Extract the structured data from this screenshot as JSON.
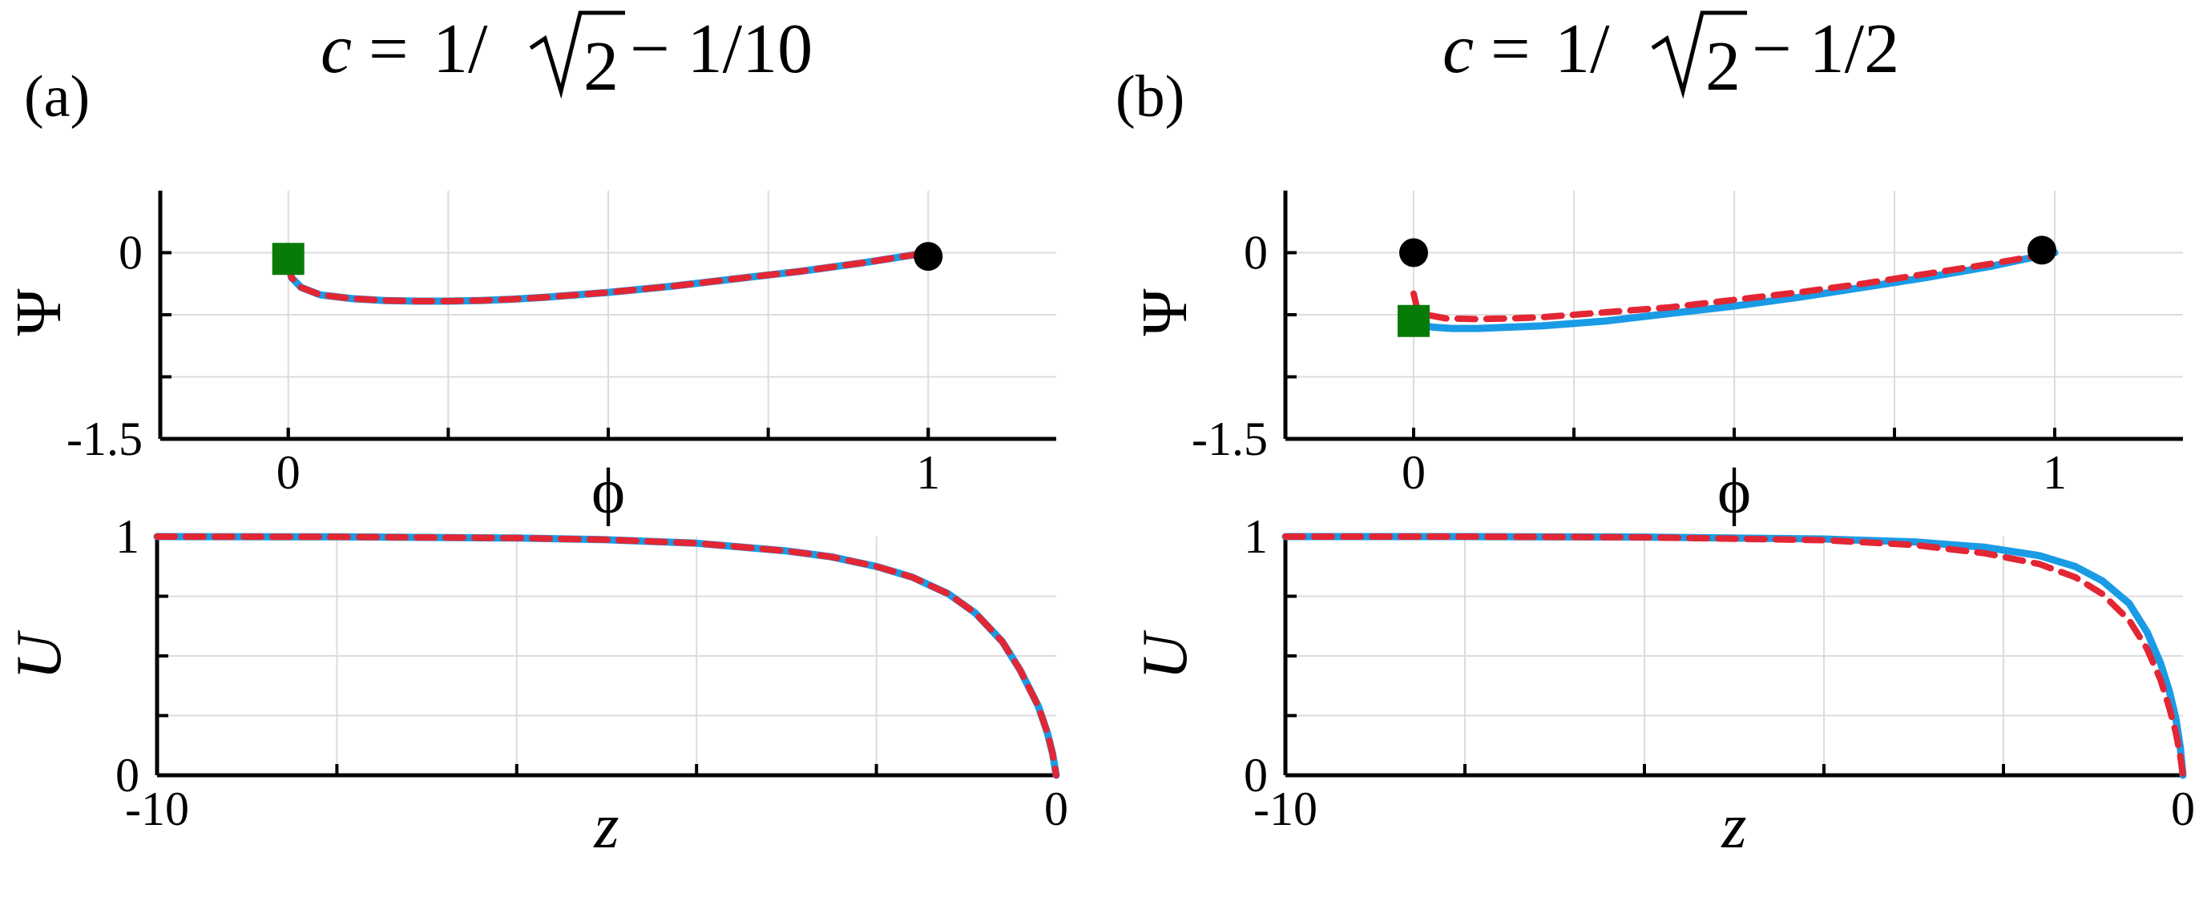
{
  "chart_data": [
    {
      "panel": "(a)",
      "title": {
        "lhs": "c",
        "eq": "=",
        "num1": "1/",
        "rad": "2",
        "rest": "− 1/10"
      },
      "subplots": [
        {
          "type": "line",
          "xlabel": "ϕ",
          "ylabel": "Ψ",
          "xlim": [
            -0.2,
            1.2
          ],
          "ylim": [
            -1.5,
            0.5
          ],
          "xticks": [
            {
              "v": 0,
              "label": "0"
            },
            {
              "v": 1,
              "label": "1"
            }
          ],
          "yticks": [
            {
              "v": 0,
              "label": "0"
            },
            {
              "v": -1.5,
              "label": "-1.5"
            }
          ],
          "grid_x": [
            0,
            0.25,
            0.5,
            0.75,
            1.0
          ],
          "grid_y": [
            0,
            -0.5,
            -1.0
          ],
          "series": [
            {
              "color": "#1a9be6",
              "style": "solid",
              "x": [
                0,
                0.005,
                0.02,
                0.05,
                0.1,
                0.15,
                0.2,
                0.25,
                0.3,
                0.35,
                0.4,
                0.5,
                0.6,
                0.7,
                0.8,
                0.9,
                1.0
              ],
              "y": [
                -0.08,
                -0.2,
                -0.28,
                -0.34,
                -0.37,
                -0.385,
                -0.39,
                -0.39,
                -0.385,
                -0.375,
                -0.36,
                -0.32,
                -0.27,
                -0.21,
                -0.15,
                -0.08,
                0
              ]
            },
            {
              "color": "#e32634",
              "style": "dashed",
              "x": [
                0,
                0.005,
                0.02,
                0.05,
                0.1,
                0.15,
                0.2,
                0.25,
                0.3,
                0.35,
                0.4,
                0.5,
                0.6,
                0.7,
                0.8,
                0.9,
                1.0
              ],
              "y": [
                -0.08,
                -0.2,
                -0.28,
                -0.34,
                -0.37,
                -0.385,
                -0.39,
                -0.39,
                -0.385,
                -0.375,
                -0.36,
                -0.32,
                -0.27,
                -0.21,
                -0.15,
                -0.08,
                0
              ]
            }
          ],
          "markers": [
            {
              "shape": "square",
              "color": "#087a08",
              "x": 0.0,
              "y": -0.05
            },
            {
              "shape": "circle",
              "color": "#000000",
              "x": 1.0,
              "y": -0.03
            }
          ]
        },
        {
          "type": "line",
          "xlabel": "z",
          "ylabel": "U",
          "xlim": [
            -10,
            0
          ],
          "ylim": [
            0,
            1
          ],
          "xticks": [
            {
              "v": -10,
              "label": "-10"
            },
            {
              "v": 0,
              "label": "0"
            }
          ],
          "yticks": [
            {
              "v": 1,
              "label": "1"
            },
            {
              "v": 0,
              "label": "0"
            }
          ],
          "minor_xticks": [
            -8,
            -6,
            -4,
            -2
          ],
          "minor_yticks": [
            0.25,
            0.5,
            0.75
          ],
          "grid_x": [
            -8,
            -6,
            -4,
            -2
          ],
          "grid_y": [
            0.25,
            0.5,
            0.75
          ],
          "series": [
            {
              "color": "#1a9be6",
              "style": "solid",
              "x": [
                -10,
                -8,
                -6,
                -5,
                -4,
                -3,
                -2.5,
                -2,
                -1.6,
                -1.2,
                -0.9,
                -0.6,
                -0.4,
                -0.2,
                -0.1,
                -0.04,
                0
              ],
              "y": [
                1.0,
                0.999,
                0.994,
                0.987,
                0.972,
                0.94,
                0.915,
                0.875,
                0.83,
                0.76,
                0.68,
                0.56,
                0.44,
                0.29,
                0.18,
                0.09,
                0
              ]
            },
            {
              "color": "#e32634",
              "style": "dashed",
              "x": [
                -10,
                -8,
                -6,
                -5,
                -4,
                -3,
                -2.5,
                -2,
                -1.6,
                -1.2,
                -0.9,
                -0.6,
                -0.4,
                -0.2,
                -0.1,
                -0.04,
                0
              ],
              "y": [
                1.0,
                0.999,
                0.994,
                0.987,
                0.972,
                0.94,
                0.915,
                0.875,
                0.83,
                0.76,
                0.68,
                0.56,
                0.44,
                0.29,
                0.18,
                0.09,
                0
              ]
            }
          ],
          "markers": []
        }
      ]
    },
    {
      "panel": "(b)",
      "title": {
        "lhs": "c",
        "eq": "=",
        "num1": "1/",
        "rad": "2",
        "rest": "− 1/2"
      },
      "subplots": [
        {
          "type": "line",
          "xlabel": "ϕ",
          "ylabel": "Ψ",
          "xlim": [
            -0.2,
            1.2
          ],
          "ylim": [
            -1.5,
            0.5
          ],
          "xticks": [
            {
              "v": 0,
              "label": "0"
            },
            {
              "v": 1,
              "label": "1"
            }
          ],
          "yticks": [
            {
              "v": 0,
              "label": "0"
            },
            {
              "v": -1.5,
              "label": "-1.5"
            }
          ],
          "grid_x": [
            0,
            0.25,
            0.5,
            0.75,
            1.0
          ],
          "grid_y": [
            0,
            -0.5,
            -1.0
          ],
          "series": [
            {
              "color": "#1a9be6",
              "style": "solid",
              "x": [
                0,
                0.01,
                0.03,
                0.06,
                0.1,
                0.15,
                0.2,
                0.3,
                0.4,
                0.5,
                0.6,
                0.7,
                0.8,
                0.9,
                1.0
              ],
              "y": [
                -0.55,
                -0.58,
                -0.6,
                -0.61,
                -0.61,
                -0.6,
                -0.59,
                -0.55,
                -0.49,
                -0.43,
                -0.36,
                -0.28,
                -0.2,
                -0.11,
                0
              ]
            },
            {
              "color": "#e32634",
              "style": "dashed",
              "x": [
                0,
                0.005,
                0.02,
                0.05,
                0.1,
                0.15,
                0.2,
                0.3,
                0.4,
                0.5,
                0.6,
                0.7,
                0.8,
                0.9,
                1.0
              ],
              "y": [
                -0.33,
                -0.44,
                -0.5,
                -0.53,
                -0.535,
                -0.53,
                -0.52,
                -0.48,
                -0.44,
                -0.38,
                -0.32,
                -0.25,
                -0.17,
                -0.09,
                0
              ]
            }
          ],
          "markers": [
            {
              "shape": "square",
              "color": "#087a08",
              "x": 0.0,
              "y": -0.55
            },
            {
              "shape": "circle",
              "color": "#000000",
              "x": 0.0,
              "y": 0.0
            },
            {
              "shape": "circle",
              "color": "#000000",
              "x": 0.98,
              "y": 0.02
            }
          ]
        },
        {
          "type": "line",
          "xlabel": "z",
          "ylabel": "U",
          "xlim": [
            -10,
            0
          ],
          "ylim": [
            0,
            1
          ],
          "xticks": [
            {
              "v": -10,
              "label": "-10"
            },
            {
              "v": 0,
              "label": "0"
            }
          ],
          "yticks": [
            {
              "v": 1,
              "label": "1"
            },
            {
              "v": 0,
              "label": "0"
            }
          ],
          "minor_xticks": [
            -8,
            -6,
            -4,
            -2
          ],
          "minor_yticks": [
            0.25,
            0.5,
            0.75
          ],
          "grid_x": [
            -8,
            -6,
            -4,
            -2
          ],
          "grid_y": [
            0.25,
            0.5,
            0.75
          ],
          "series": [
            {
              "color": "#1a9be6",
              "style": "solid",
              "x": [
                -10,
                -8,
                -6,
                -4,
                -3,
                -2.2,
                -1.6,
                -1.2,
                -0.9,
                -0.6,
                -0.4,
                -0.25,
                -0.15,
                -0.08,
                -0.03,
                0
              ],
              "y": [
                1.0,
                1.0,
                0.998,
                0.99,
                0.978,
                0.955,
                0.92,
                0.875,
                0.815,
                0.72,
                0.6,
                0.47,
                0.35,
                0.24,
                0.12,
                0
              ]
            },
            {
              "color": "#e32634",
              "style": "dashed",
              "x": [
                -10,
                -8,
                -6,
                -4,
                -3,
                -2.2,
                -1.6,
                -1.2,
                -0.9,
                -0.6,
                -0.4,
                -0.25,
                -0.15,
                -0.08,
                -0.03,
                0
              ],
              "y": [
                1.0,
                1.0,
                0.997,
                0.985,
                0.965,
                0.93,
                0.885,
                0.83,
                0.76,
                0.65,
                0.53,
                0.4,
                0.28,
                0.18,
                0.08,
                0
              ]
            }
          ],
          "markers": []
        }
      ]
    }
  ]
}
